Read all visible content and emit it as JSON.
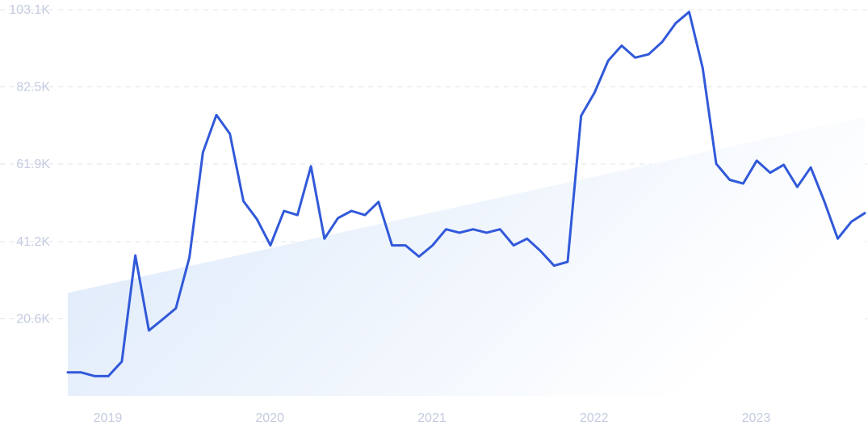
{
  "colors": {
    "line": "#3159d9",
    "grid": "#dfe4ee",
    "tick_text": "#c4cbe0",
    "trend_fill_start": "#dbe8fa",
    "trend_fill_end": "#ffffff"
  },
  "chart_data": {
    "type": "line",
    "title": "",
    "xlabel": "",
    "ylabel": "",
    "x_tick_labels": [
      "2019",
      "2020",
      "2021",
      "2022",
      "2023"
    ],
    "y_tick_labels": [
      "20.6K",
      "41.2K",
      "61.9K",
      "82.5K",
      "103.1K"
    ],
    "y_tick_values": [
      20600,
      41200,
      61900,
      82500,
      103100
    ],
    "ylim": [
      0,
      103100
    ],
    "xlim": [
      "2018-11",
      "2023-10"
    ],
    "grid": true,
    "legend": "none",
    "trend_area": {
      "start_value": 27500,
      "end_value": 74500
    },
    "series": [
      {
        "x": [
          "2018-11",
          "2018-12",
          "2019-01",
          "2019-02",
          "2019-03",
          "2019-04",
          "2019-05",
          "2019-06",
          "2019-07",
          "2019-08",
          "2019-09",
          "2019-10",
          "2019-11",
          "2019-12",
          "2020-01",
          "2020-02",
          "2020-03",
          "2020-04",
          "2020-05",
          "2020-06",
          "2020-07",
          "2020-08",
          "2020-09",
          "2020-10",
          "2020-11",
          "2020-12",
          "2021-01",
          "2021-02",
          "2021-03",
          "2021-04",
          "2021-05",
          "2021-06",
          "2021-07",
          "2021-08",
          "2021-09",
          "2021-10",
          "2021-11",
          "2021-12",
          "2022-01",
          "2022-02",
          "2022-03",
          "2022-04",
          "2022-05",
          "2022-06",
          "2022-07",
          "2022-08",
          "2022-09",
          "2022-10",
          "2022-11",
          "2022-12",
          "2023-01",
          "2023-02",
          "2023-03",
          "2023-04",
          "2023-05",
          "2023-06",
          "2023-07",
          "2023-08",
          "2023-09",
          "2023-10"
        ],
        "values": [
          6300,
          6300,
          5300,
          5300,
          9200,
          37500,
          17500,
          20400,
          23400,
          37000,
          65000,
          75000,
          70000,
          52000,
          47200,
          40200,
          49400,
          48300,
          61300,
          42000,
          47500,
          49400,
          48300,
          51800,
          40200,
          40200,
          37200,
          40200,
          44500,
          43600,
          44500,
          43600,
          44500,
          40200,
          42000,
          38700,
          34800,
          35800,
          74800,
          81000,
          89500,
          93500,
          90300,
          91200,
          94500,
          99500,
          102500,
          87500,
          62000,
          57700,
          56700,
          62800,
          59600,
          61700,
          55800,
          61000,
          52000,
          42000,
          46500,
          48800
        ]
      }
    ]
  }
}
